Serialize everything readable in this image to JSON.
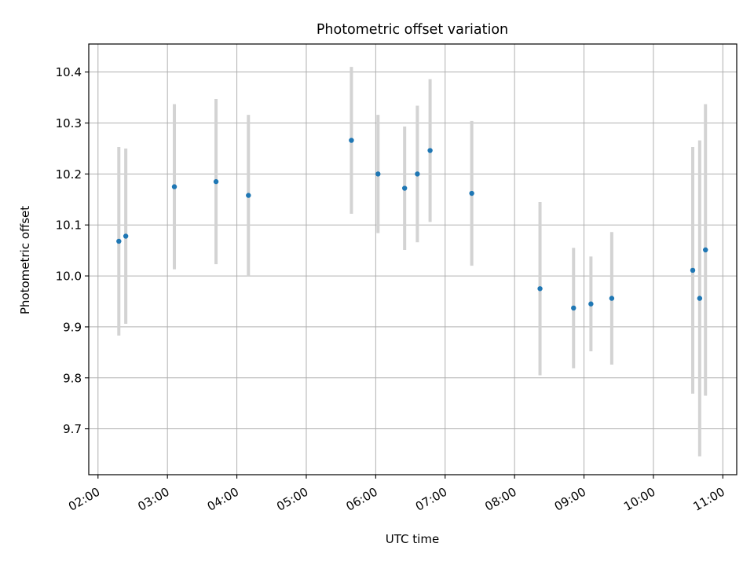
{
  "chart_data": {
    "type": "scatter",
    "title": "Photometric offset variation",
    "xlabel": "UTC time",
    "ylabel": "Photometric offset",
    "x_scale": "time",
    "xlim": [
      "01:52",
      "11:12"
    ],
    "ylim": [
      9.61,
      10.455
    ],
    "x_ticks": [
      "02:00",
      "03:00",
      "04:00",
      "05:00",
      "06:00",
      "07:00",
      "08:00",
      "09:00",
      "10:00",
      "11:00"
    ],
    "y_ticks": [
      "9.7",
      "9.8",
      "9.9",
      "10.0",
      "10.1",
      "10.2",
      "10.3",
      "10.4"
    ],
    "grid": true,
    "colors": {
      "point": "#1f77b4",
      "errorbar": "#d3d3d3",
      "grid": "#b0b0b0",
      "axes": "#000000"
    },
    "series": [
      {
        "points": [
          {
            "t": "02:18",
            "y": 10.068,
            "yerr": 0.185
          },
          {
            "t": "02:24",
            "y": 10.078,
            "yerr": 0.172
          },
          {
            "t": "03:06",
            "y": 10.175,
            "yerr": 0.162
          },
          {
            "t": "03:42",
            "y": 10.185,
            "yerr": 0.162
          },
          {
            "t": "04:10",
            "y": 10.158,
            "yerr": 0.158
          },
          {
            "t": "05:39",
            "y": 10.266,
            "yerr": 0.144
          },
          {
            "t": "06:02",
            "y": 10.2,
            "yerr": 0.116
          },
          {
            "t": "06:25",
            "y": 10.172,
            "yerr": 0.121
          },
          {
            "t": "06:36",
            "y": 10.2,
            "yerr": 0.134
          },
          {
            "t": "06:47",
            "y": 10.246,
            "yerr": 0.14
          },
          {
            "t": "07:23",
            "y": 10.162,
            "yerr": 0.142
          },
          {
            "t": "08:22",
            "y": 9.975,
            "yerr": 0.17
          },
          {
            "t": "08:51",
            "y": 9.937,
            "yerr": 0.118
          },
          {
            "t": "09:06",
            "y": 9.945,
            "yerr": 0.093
          },
          {
            "t": "09:24",
            "y": 9.956,
            "yerr": 0.13
          },
          {
            "t": "10:34",
            "y": 10.011,
            "yerr": 0.242
          },
          {
            "t": "10:40",
            "y": 9.956,
            "yerr": 0.31
          },
          {
            "t": "10:45",
            "y": 10.051,
            "yerr": 0.286
          }
        ]
      }
    ]
  }
}
